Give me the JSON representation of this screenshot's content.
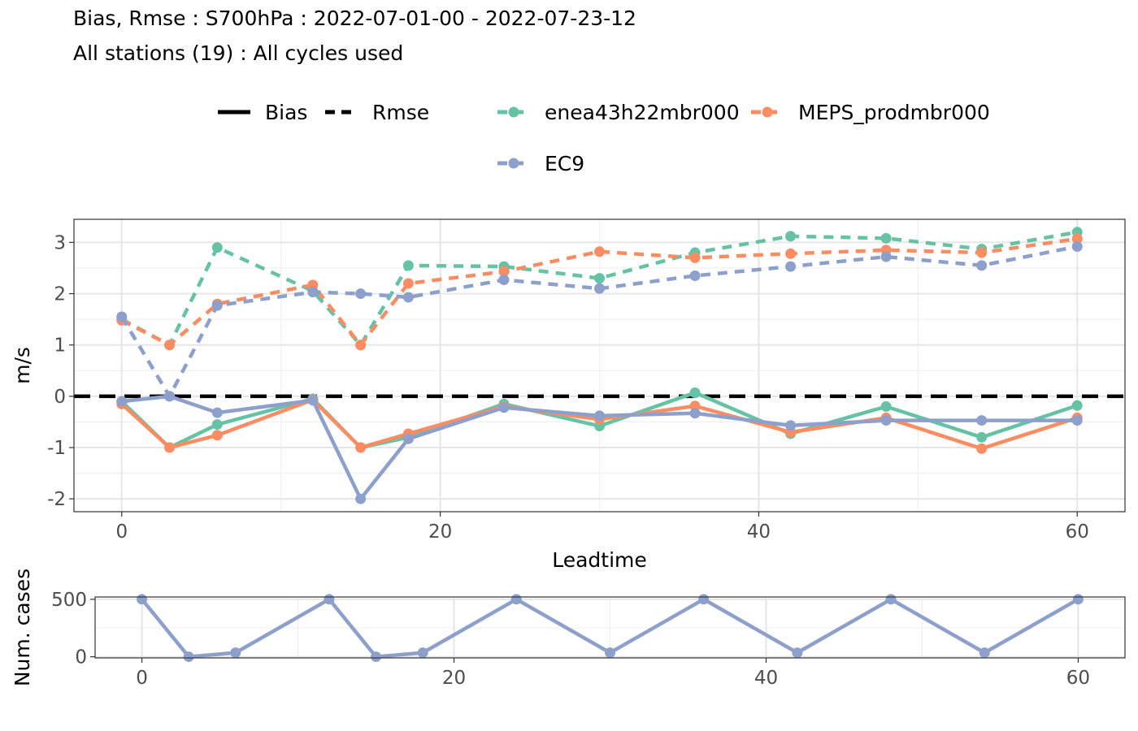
{
  "title": "Bias, Rmse : S700hPa : 2022-07-01-00 - 2022-07-23-12",
  "subtitle": "All stations (19) : All cycles used",
  "legend": {
    "linetypes": [
      {
        "label": "Bias",
        "style": "solid"
      },
      {
        "label": "Rmse",
        "style": "dashed"
      }
    ],
    "models": [
      {
        "label": "enea43h22mbr000",
        "color": "#66C2A5"
      },
      {
        "label": "MEPS_prodmbr000",
        "color": "#FC8D62"
      },
      {
        "label": "EC9",
        "color": "#8DA0CB"
      }
    ]
  },
  "chart_data": [
    {
      "type": "line",
      "xlabel": "Leadtime",
      "ylabel": "m/s",
      "xlim": [
        -3,
        63
      ],
      "ylim": [
        -2.25,
        3.45
      ],
      "xticks": [
        0,
        20,
        40,
        60
      ],
      "yticks": [
        -2,
        -1,
        0,
        1,
        2,
        3
      ],
      "grid": true,
      "reference_line": {
        "y": 0,
        "style": "dashed",
        "color": "#000000"
      },
      "x": [
        0,
        3,
        6,
        12,
        15,
        18,
        24,
        30,
        36,
        42,
        48,
        54,
        60
      ],
      "series": [
        {
          "name": "enea43h22mbr000",
          "metric": "Bias",
          "color": "#66C2A5",
          "values": [
            -0.1,
            -1.0,
            -0.55,
            -0.05,
            -1.0,
            -0.8,
            -0.15,
            -0.58,
            0.07,
            -0.73,
            -0.2,
            -0.8,
            -0.18
          ]
        },
        {
          "name": "MEPS_prodmbr000",
          "metric": "Bias",
          "color": "#FC8D62",
          "values": [
            -0.15,
            -1.0,
            -0.76,
            -0.07,
            -1.0,
            -0.73,
            -0.2,
            -0.45,
            -0.19,
            -0.7,
            -0.42,
            -1.02,
            -0.42
          ]
        },
        {
          "name": "EC9",
          "metric": "Bias",
          "color": "#8DA0CB",
          "values": [
            -0.1,
            0.0,
            -0.32,
            -0.08,
            -2.0,
            -0.83,
            -0.22,
            -0.38,
            -0.33,
            -0.57,
            -0.47,
            -0.47,
            -0.47
          ]
        },
        {
          "name": "enea43h22mbr000",
          "metric": "Rmse",
          "color": "#66C2A5",
          "values": [
            1.5,
            1.0,
            2.9,
            2.05,
            1.0,
            2.55,
            2.53,
            2.3,
            2.8,
            3.12,
            3.08,
            2.87,
            3.2
          ]
        },
        {
          "name": "MEPS_prodmbr000",
          "metric": "Rmse",
          "color": "#FC8D62",
          "values": [
            1.48,
            1.0,
            1.8,
            2.17,
            1.0,
            2.2,
            2.43,
            2.82,
            2.7,
            2.78,
            2.85,
            2.8,
            3.07
          ]
        },
        {
          "name": "EC9",
          "metric": "Rmse",
          "color": "#8DA0CB",
          "values": [
            1.55,
            0.0,
            1.77,
            2.03,
            2.0,
            1.93,
            2.27,
            2.1,
            2.35,
            2.53,
            2.72,
            2.55,
            2.92
          ]
        }
      ]
    },
    {
      "type": "line",
      "xlabel": "",
      "ylabel": "Num. cases",
      "xlim": [
        -3,
        63
      ],
      "ylim": [
        -10,
        520
      ],
      "xticks": [
        0,
        20,
        40,
        60
      ],
      "yticks": [
        0,
        500
      ],
      "grid": true,
      "x": [
        0,
        3,
        6,
        12,
        15,
        18,
        24,
        30,
        36,
        42,
        48,
        54,
        60
      ],
      "series": [
        {
          "color": "#8DA0CB",
          "values": [
            500,
            0,
            35,
            500,
            0,
            35,
            500,
            35,
            500,
            35,
            500,
            35,
            500
          ]
        }
      ]
    }
  ]
}
